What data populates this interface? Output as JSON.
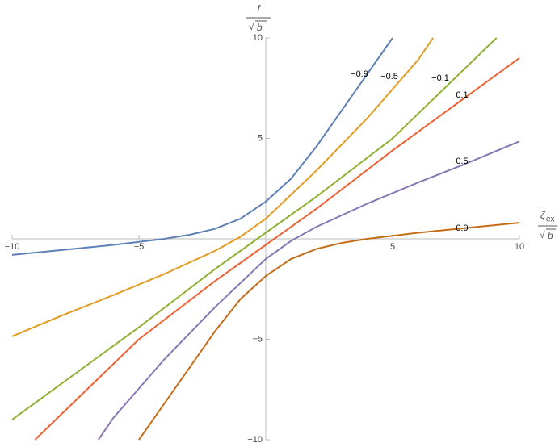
{
  "chart_data": {
    "type": "line",
    "x_label": {
      "symbol": "ζ",
      "subscript": "ex",
      "denominator": "b"
    },
    "y_label": {
      "symbol": "f",
      "denominator": "b"
    },
    "radical": "√",
    "xlim": [
      -10,
      10
    ],
    "ylim": [
      -10,
      10
    ],
    "xticks": [
      {
        "value": -10,
        "label": "−10"
      },
      {
        "value": -5,
        "label": "−5"
      },
      5,
      10
    ],
    "yticks": [
      {
        "value": -10,
        "label": "−10"
      },
      {
        "value": -5,
        "label": "−5"
      },
      5,
      10
    ],
    "series": [
      {
        "name": "−0.9",
        "color": "#5e81b5",
        "x": [
          -10,
          -8,
          -6,
          -4,
          -3,
          -2,
          -1,
          0,
          1,
          2,
          3,
          4,
          5
        ],
        "values": [
          -0.8,
          -0.55,
          -0.3,
          0.0,
          0.2,
          0.5,
          1.0,
          1.85,
          3.0,
          4.6,
          6.4,
          8.2,
          10
        ]
      },
      {
        "name": "−0.5",
        "color": "#e19c24",
        "x": [
          -10,
          -8,
          -6,
          -4,
          -2,
          -1,
          0,
          2,
          4,
          6,
          6.6
        ],
        "values": [
          -4.85,
          -3.8,
          -2.8,
          -1.75,
          -0.6,
          0.1,
          1.0,
          3.4,
          6.0,
          8.9,
          10
        ]
      },
      {
        "name": "−0.1",
        "color": "#8fb032",
        "x": [
          -10,
          -5,
          -2,
          0,
          2,
          5,
          9.1
        ],
        "values": [
          -9,
          -4.4,
          -1.5,
          0.3,
          2.1,
          5.0,
          10
        ]
      },
      {
        "name": "0.1",
        "color": "#eb6235",
        "x": [
          -9.1,
          -5,
          -2,
          0,
          2,
          5,
          10
        ],
        "values": [
          -10,
          -5,
          -2.1,
          -0.3,
          1.5,
          4.4,
          9
        ]
      },
      {
        "name": "0.5",
        "color": "#8778b3",
        "x": [
          -6.6,
          -6,
          -4,
          -2,
          0,
          1,
          2,
          4,
          6,
          8,
          10
        ],
        "values": [
          -10,
          -8.9,
          -6,
          -3.4,
          -1,
          -0.1,
          0.6,
          1.75,
          2.8,
          3.8,
          4.85
        ]
      },
      {
        "name": "0.9",
        "color": "#c56e1a",
        "x": [
          -5,
          -4,
          -3,
          -2,
          -1,
          0,
          1,
          2,
          3,
          4,
          6,
          8,
          10
        ],
        "values": [
          -10,
          -8.2,
          -6.4,
          -4.6,
          -3,
          -1.85,
          -1,
          -0.5,
          -0.2,
          0,
          0.3,
          0.55,
          0.8
        ]
      }
    ]
  }
}
